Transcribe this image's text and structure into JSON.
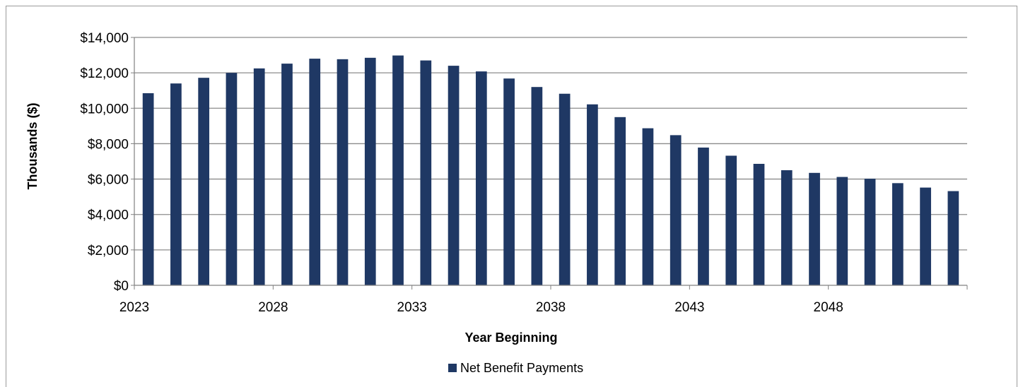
{
  "chart_data": {
    "type": "bar",
    "title": "",
    "xlabel": "Year Beginning",
    "ylabel": "Thousands ($)",
    "ylim": [
      0,
      14000
    ],
    "y_ticks": [
      0,
      2000,
      4000,
      6000,
      8000,
      10000,
      12000,
      14000
    ],
    "y_tick_labels": [
      "$0",
      "$2,000",
      "$4,000",
      "$6,000",
      "$8,000",
      "$10,000",
      "$12,000",
      "$14,000"
    ],
    "x_tick_labels": [
      "2023",
      "2028",
      "2033",
      "2038",
      "2043",
      "2048"
    ],
    "categories": [
      "2023",
      "2024",
      "2025",
      "2026",
      "2027",
      "2028",
      "2029",
      "2030",
      "2031",
      "2032",
      "2033",
      "2034",
      "2035",
      "2036",
      "2037",
      "2038",
      "2039",
      "2040",
      "2041",
      "2042",
      "2043",
      "2044",
      "2045",
      "2046",
      "2047",
      "2048",
      "2049",
      "2050",
      "2051",
      "2052"
    ],
    "series": [
      {
        "name": "Net Benefit Payments",
        "color": "#1f3864",
        "values": [
          10850,
          11400,
          11720,
          12000,
          12250,
          12520,
          12800,
          12770,
          12850,
          12980,
          12700,
          12400,
          12080,
          11680,
          11200,
          10820,
          10220,
          9500,
          8870,
          8480,
          7780,
          7320,
          6860,
          6500,
          6350,
          6120,
          6020,
          5770,
          5520,
          5320
        ]
      }
    ],
    "grid": true,
    "legend": "bottom-center"
  }
}
